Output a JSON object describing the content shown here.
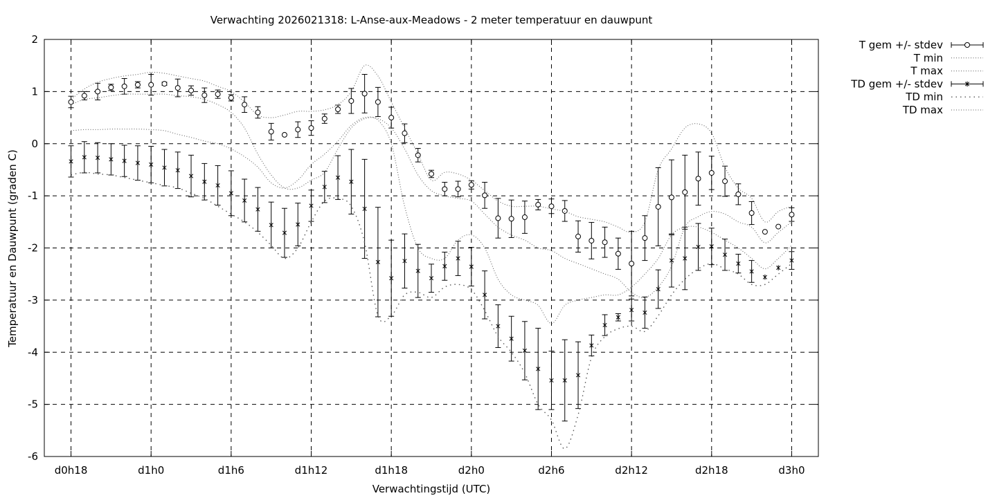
{
  "chart_data": {
    "type": "line",
    "title": "Verwachting 2026021318: L-Anse-aux-Meadows - 2 meter temperatuur en dauwpunt",
    "xlabel": "Verwachtingstijd (UTC)",
    "ylabel": "Temperatuur en Dauwpunt (graden C)",
    "xlim": [
      -2,
      56
    ],
    "ylim": [
      -6,
      2
    ],
    "x_unit": "forecast hours after d0h18",
    "x_ticks": [
      {
        "x": 0,
        "label": "d0h18"
      },
      {
        "x": 6,
        "label": "d1h0"
      },
      {
        "x": 12,
        "label": "d1h6"
      },
      {
        "x": 18,
        "label": "d1h12"
      },
      {
        "x": 24,
        "label": "d1h18"
      },
      {
        "x": 30,
        "label": "d2h0"
      },
      {
        "x": 36,
        "label": "d2h6"
      },
      {
        "x": 42,
        "label": "d2h12"
      },
      {
        "x": 48,
        "label": "d2h18"
      },
      {
        "x": 54,
        "label": "d3h0"
      }
    ],
    "y_ticks": [
      2,
      1,
      0,
      -1,
      -2,
      -3,
      -4,
      -5,
      -6
    ],
    "y_tick_labels": [
      "2",
      "1",
      "0",
      "-1",
      "-2",
      "-3",
      "-4",
      "-5",
      "-6"
    ],
    "grid": true,
    "legend_position": "outside-top-right",
    "x": [
      0,
      1,
      2,
      3,
      4,
      5,
      6,
      7,
      8,
      9,
      10,
      11,
      12,
      13,
      14,
      15,
      16,
      17,
      18,
      19,
      20,
      21,
      22,
      23,
      24,
      25,
      26,
      27,
      28,
      29,
      30,
      31,
      32,
      33,
      34,
      35,
      36,
      37,
      38,
      39,
      40,
      41,
      42,
      43,
      44,
      45,
      46,
      47,
      48,
      49,
      50,
      51,
      52,
      53,
      54
    ],
    "series": [
      {
        "name": "T gem +/- stdev",
        "marker": "circle",
        "values": [
          0.8,
          0.92,
          1.0,
          1.08,
          1.1,
          1.13,
          1.13,
          1.15,
          1.07,
          1.02,
          0.93,
          0.95,
          0.88,
          0.75,
          0.6,
          0.23,
          0.17,
          0.27,
          0.3,
          0.48,
          0.66,
          0.82,
          0.96,
          0.8,
          0.5,
          0.2,
          -0.22,
          -0.58,
          -0.87,
          -0.87,
          -0.79,
          -0.99,
          -1.43,
          -1.44,
          -1.41,
          -1.17,
          -1.2,
          -1.29,
          -1.78,
          -1.86,
          -1.89,
          -2.11,
          -2.3,
          -1.81,
          -1.21,
          -1.03,
          -0.93,
          -0.67,
          -0.56,
          -0.72,
          -0.97,
          -1.33,
          -1.69,
          -1.59,
          -1.36
        ],
        "stdev": [
          0.11,
          0.08,
          0.16,
          0.06,
          0.15,
          0.06,
          0.2,
          0.03,
          0.17,
          0.09,
          0.14,
          0.08,
          0.06,
          0.15,
          0.11,
          0.16,
          0.0,
          0.15,
          0.14,
          0.09,
          0.08,
          0.24,
          0.37,
          0.28,
          0.2,
          0.18,
          0.13,
          0.07,
          0.13,
          0.15,
          0.08,
          0.25,
          0.38,
          0.36,
          0.31,
          0.1,
          0.14,
          0.2,
          0.3,
          0.35,
          0.29,
          0.3,
          0.62,
          0.43,
          0.75,
          0.72,
          0.71,
          0.51,
          0.32,
          0.29,
          0.2,
          0.22,
          0.0,
          0.0,
          0.13
        ]
      },
      {
        "name": "T min",
        "line": "dotted",
        "values": [
          0.75,
          0.85,
          0.88,
          0.92,
          0.95,
          0.95,
          0.95,
          0.95,
          0.92,
          0.9,
          0.85,
          0.75,
          0.6,
          0.3,
          -0.2,
          -0.6,
          -0.85,
          -0.85,
          -0.7,
          -0.55,
          -0.1,
          0.3,
          0.48,
          0.48,
          0.3,
          -0.1,
          -0.6,
          -0.9,
          -1.0,
          -1.05,
          -1.1,
          -1.35,
          -1.6,
          -1.75,
          -1.85,
          -2.0,
          -2.05,
          -2.2,
          -2.3,
          -2.4,
          -2.5,
          -2.6,
          -2.85,
          -2.95,
          -2.75,
          -2.35,
          -1.6,
          -1.4,
          -1.3,
          -1.35,
          -1.5,
          -1.6,
          -1.9,
          -1.7,
          -1.5
        ]
      },
      {
        "name": "T max",
        "line": "dotted",
        "values": [
          0.85,
          1.05,
          1.18,
          1.25,
          1.3,
          1.33,
          1.37,
          1.35,
          1.3,
          1.25,
          1.2,
          1.1,
          1.0,
          0.8,
          0.55,
          0.5,
          0.55,
          0.62,
          0.62,
          0.65,
          0.75,
          1.0,
          1.5,
          1.3,
          0.8,
          0.3,
          -0.2,
          -0.7,
          -0.55,
          -0.58,
          -0.7,
          -0.9,
          -1.1,
          -1.2,
          -1.2,
          -1.2,
          -1.25,
          -1.3,
          -1.4,
          -1.45,
          -1.5,
          -1.6,
          -1.7,
          -1.5,
          -0.5,
          -0.1,
          0.3,
          0.38,
          0.2,
          -0.45,
          -0.85,
          -1.05,
          -1.5,
          -1.3,
          -1.2
        ]
      },
      {
        "name": "TD gem +/- stdev",
        "marker": "asterisk",
        "values": [
          -0.34,
          -0.26,
          -0.27,
          -0.3,
          -0.33,
          -0.37,
          -0.4,
          -0.46,
          -0.51,
          -0.62,
          -0.73,
          -0.8,
          -0.95,
          -1.09,
          -1.26,
          -1.56,
          -1.71,
          -1.55,
          -1.19,
          -0.83,
          -0.65,
          -0.73,
          -1.25,
          -2.27,
          -2.58,
          -2.25,
          -2.44,
          -2.58,
          -2.35,
          -2.2,
          -2.36,
          -2.9,
          -3.5,
          -3.74,
          -3.97,
          -4.32,
          -4.54,
          -4.54,
          -4.44,
          -3.87,
          -3.48,
          -3.33,
          -3.19,
          -3.24,
          -2.79,
          -2.24,
          -2.2,
          -1.98,
          -1.97,
          -2.13,
          -2.3,
          -2.45,
          -2.56,
          -2.38,
          -2.24
        ],
        "stdev": [
          0.3,
          0.3,
          0.29,
          0.3,
          0.3,
          0.33,
          0.35,
          0.35,
          0.35,
          0.4,
          0.35,
          0.38,
          0.43,
          0.41,
          0.42,
          0.44,
          0.47,
          0.41,
          0.3,
          0.3,
          0.42,
          0.62,
          0.95,
          1.05,
          0.73,
          0.52,
          0.51,
          0.27,
          0.27,
          0.33,
          0.37,
          0.46,
          0.41,
          0.43,
          0.56,
          0.78,
          0.56,
          0.78,
          0.64,
          0.2,
          0.2,
          0.07,
          0.21,
          0.3,
          0.37,
          0.51,
          0.6,
          0.45,
          0.35,
          0.3,
          0.18,
          0.21,
          0.0,
          0.0,
          0.17
        ]
      },
      {
        "name": "TD min",
        "line": "loose-dotted",
        "values": [
          -0.6,
          -0.55,
          -0.58,
          -0.6,
          -0.65,
          -0.7,
          -0.75,
          -0.8,
          -0.85,
          -0.95,
          -1.05,
          -1.2,
          -1.35,
          -1.5,
          -1.7,
          -1.95,
          -2.2,
          -2.0,
          -1.5,
          -1.1,
          -1.05,
          -1.2,
          -1.9,
          -3.3,
          -3.3,
          -2.9,
          -2.85,
          -2.95,
          -2.75,
          -2.7,
          -2.8,
          -3.2,
          -3.7,
          -4.0,
          -4.4,
          -5.0,
          -5.3,
          -5.85,
          -5.2,
          -4.1,
          -3.7,
          -3.55,
          -3.5,
          -3.6,
          -3.3,
          -2.9,
          -2.6,
          -2.4,
          -2.3,
          -2.4,
          -2.5,
          -2.7,
          -2.7,
          -2.5,
          -2.3
        ]
      },
      {
        "name": "TD max",
        "line": "dotted",
        "values": [
          0.25,
          0.27,
          0.27,
          0.28,
          0.28,
          0.28,
          0.27,
          0.25,
          0.18,
          0.12,
          0.05,
          0.0,
          -0.1,
          -0.25,
          -0.45,
          -0.75,
          -0.85,
          -0.7,
          -0.4,
          -0.2,
          0.05,
          0.35,
          0.5,
          0.45,
          0.0,
          -1.2,
          -2.0,
          -2.2,
          -2.2,
          -1.85,
          -1.75,
          -2.0,
          -2.6,
          -2.9,
          -3.0,
          -3.1,
          -3.45,
          -3.1,
          -3.0,
          -2.95,
          -2.9,
          -2.9,
          -2.75,
          -2.5,
          -2.2,
          -1.75,
          -1.6,
          -1.6,
          -1.7,
          -1.85,
          -2.0,
          -2.2,
          -2.4,
          -2.2,
          -1.95
        ]
      }
    ]
  }
}
